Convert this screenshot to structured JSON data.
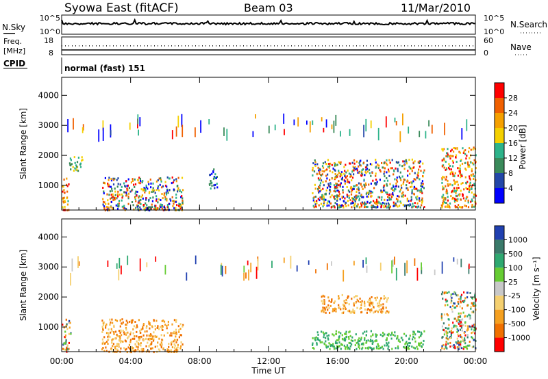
{
  "header": {
    "station": "Syowa East (fitACF)",
    "beam": "Beam 03",
    "date": "11/Mar/2010"
  },
  "top_panels": {
    "nsky_label": "N.Sky",
    "nsky_ticks": [
      "10^5",
      "10^0"
    ],
    "nsearch_label": "N.Search",
    "nsearch_ticks": [
      "10^5",
      "10^0"
    ],
    "freq_label": "Freq.",
    "freq_unit": "[MHz]",
    "freq_ticks": [
      "18",
      "8"
    ],
    "nave_label": "Nave",
    "nave_ticks": [
      "60",
      "0"
    ],
    "cpid_label": "CPID",
    "cpid_value": "normal (fast) 151"
  },
  "x_axis": {
    "label": "Time UT",
    "ticks": [
      "00:00",
      "04:00",
      "08:00",
      "12:00",
      "16:00",
      "20:00",
      "00:00"
    ]
  },
  "power_panel": {
    "ylabel": "Slant Range [km]",
    "yticks": [
      "1000",
      "2000",
      "3000",
      "4000"
    ],
    "colorbar_label": "Power [dB]",
    "colorbar_ticks": [
      "4",
      "8",
      "12",
      "16",
      "20",
      "24",
      "28"
    ]
  },
  "velocity_panel": {
    "ylabel": "Slant Range [km]",
    "yticks": [
      "1000",
      "2000",
      "3000",
      "4000"
    ],
    "colorbar_label": "Velocity [m s⁻¹]",
    "colorbar_ticks": [
      "1000",
      "500",
      "100",
      "25",
      "-25",
      "-100",
      "-500",
      "-1000"
    ]
  },
  "chart_data": [
    {
      "type": "heatmap",
      "title": "Power",
      "xlabel": "Time UT",
      "ylabel": "Slant Range [km]",
      "xlim": [
        0,
        24
      ],
      "ylim": [
        180,
        4600
      ],
      "colorbar": {
        "label": "Power [dB]",
        "colors": [
          "#0000ff",
          "#2347a8",
          "#3a8a5a",
          "#2db38a",
          "#f4d000",
          "#f5a000",
          "#f06000",
          "#ff0000"
        ],
        "ticks": [
          4,
          8,
          12,
          16,
          20,
          24,
          28
        ]
      },
      "regions": [
        {
          "t": [
            0.0,
            0.4
          ],
          "range": [
            200,
            1300
          ],
          "level": "high"
        },
        {
          "t": [
            0.4,
            1.2
          ],
          "range": [
            1500,
            2000
          ],
          "level": "medium"
        },
        {
          "t": [
            2.3,
            7.0
          ],
          "range": [
            200,
            1300
          ],
          "level": "mixed"
        },
        {
          "t": [
            8.5,
            9.0
          ],
          "range": [
            900,
            1600
          ],
          "level": "low"
        },
        {
          "t": [
            14.5,
            21.0
          ],
          "range": [
            300,
            1900
          ],
          "level": "mixed"
        },
        {
          "t": [
            22.0,
            24.0
          ],
          "range": [
            300,
            2300
          ],
          "level": "high"
        }
      ]
    },
    {
      "type": "heatmap",
      "title": "Velocity",
      "xlabel": "Time UT",
      "ylabel": "Slant Range [km]",
      "xlim": [
        0,
        24
      ],
      "ylim": [
        180,
        4600
      ],
      "colorbar": {
        "label": "Velocity [m s⁻¹]",
        "colors": [
          "#2040b0",
          "#3a7a6a",
          "#2ea870",
          "#66cc33",
          "#c8c8c8",
          "#f5d070",
          "#f5a020",
          "#f07000",
          "#ff0000"
        ],
        "ticks": [
          1000,
          500,
          100,
          25,
          -25,
          -100,
          -500,
          -1000
        ]
      },
      "regions": [
        {
          "t": [
            0.0,
            0.5
          ],
          "range": [
            200,
            1300
          ],
          "level": "mixed"
        },
        {
          "t": [
            2.3,
            7.0
          ],
          "range": [
            200,
            1300
          ],
          "level": "negative"
        },
        {
          "t": [
            14.5,
            21.0
          ],
          "range": [
            300,
            900
          ],
          "level": "positive"
        },
        {
          "t": [
            15.0,
            19.0
          ],
          "range": [
            1500,
            2100
          ],
          "level": "negative"
        },
        {
          "t": [
            22.0,
            24.0
          ],
          "range": [
            300,
            2200
          ],
          "level": "mixed"
        }
      ]
    }
  ]
}
